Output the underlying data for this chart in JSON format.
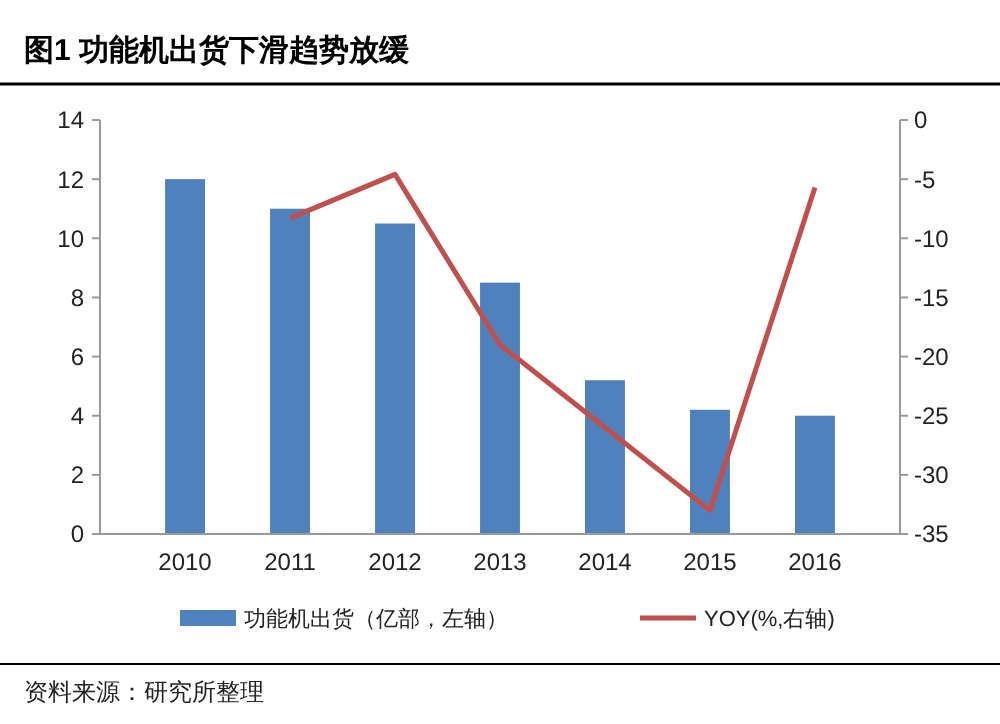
{
  "chart_data": {
    "type": "bar",
    "title": "图1  功能机出货下滑趋势放缓",
    "categories": [
      "2010",
      "2011",
      "2012",
      "2013",
      "2014",
      "2015",
      "2016"
    ],
    "series": [
      {
        "name": "功能机出货（亿部，左轴）",
        "color": "#4f81bd",
        "values": [
          12,
          11,
          10.5,
          8.5,
          5.2,
          4.2,
          4.0
        ]
      },
      {
        "name": "YOY(%,右轴)",
        "type": "line",
        "axis": "y2",
        "color": "#c0504d",
        "values": [
          null,
          -8.3,
          -4.6,
          -19,
          -26,
          -33,
          -5.7
        ]
      }
    ],
    "ylim": [
      0,
      14
    ],
    "yticks": [
      0,
      2,
      4,
      6,
      8,
      10,
      12,
      14
    ],
    "y2lim": [
      -35,
      0
    ],
    "y2ticks": [
      -35,
      -30,
      -25,
      -20,
      -15,
      -10,
      -5,
      0
    ],
    "legend": "bottom",
    "annotations": [
      "资料来源：研究所整理"
    ]
  }
}
